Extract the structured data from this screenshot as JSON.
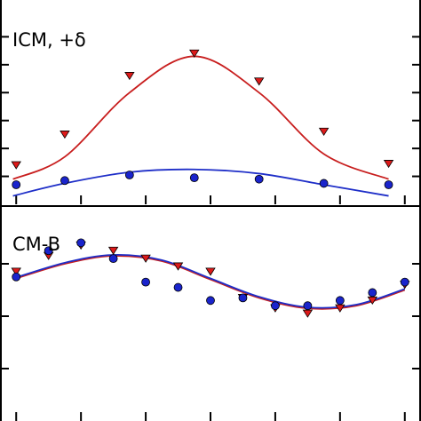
{
  "colors": {
    "red": "#c81e1e",
    "blue": "#1e2ec8",
    "red_marker": "#dd1a1a",
    "blue_marker": "#1a24cc"
  },
  "chart_data": [
    {
      "type": "scatter",
      "panel_label": "ICM, +δ",
      "xlim": [
        0,
        13
      ],
      "ylim": [
        0,
        7
      ],
      "grid": false,
      "series": [
        {
          "color": "red",
          "marker": "down-triangle",
          "points": [
            [
              0.5,
              1.4
            ],
            [
              2,
              2.5
            ],
            [
              4,
              4.6
            ],
            [
              6,
              5.4
            ],
            [
              8,
              4.4
            ],
            [
              10,
              2.6
            ],
            [
              12,
              1.45
            ]
          ],
          "fit_curve": [
            [
              0.4,
              0.9
            ],
            [
              2,
              1.7
            ],
            [
              4,
              4.0
            ],
            [
              6,
              5.3
            ],
            [
              8,
              4.0
            ],
            [
              10,
              1.8
            ],
            [
              12,
              0.9
            ]
          ]
        },
        {
          "color": "blue",
          "marker": "circle",
          "points": [
            [
              0.5,
              0.7
            ],
            [
              2,
              0.85
            ],
            [
              4,
              1.05
            ],
            [
              6,
              0.95
            ],
            [
              8,
              0.9
            ],
            [
              10,
              0.75
            ],
            [
              12,
              0.7
            ]
          ],
          "fit_curve": [
            [
              0.4,
              0.3
            ],
            [
              2,
              0.75
            ],
            [
              4,
              1.15
            ],
            [
              6,
              1.25
            ],
            [
              8,
              1.1
            ],
            [
              10,
              0.7
            ],
            [
              12,
              0.3
            ]
          ]
        }
      ]
    },
    {
      "type": "scatter",
      "panel_label": "CM-B",
      "xlim": [
        0,
        13
      ],
      "ylim": [
        0,
        4
      ],
      "grid": false,
      "series": [
        {
          "color": "red",
          "marker": "down-triangle",
          "points": [
            [
              0.5,
              2.85
            ],
            [
              1.5,
              3.15
            ],
            [
              2.5,
              3.35
            ],
            [
              3.5,
              3.25
            ],
            [
              4.5,
              3.1
            ],
            [
              5.5,
              2.95
            ],
            [
              6.5,
              2.85
            ],
            [
              7.5,
              2.35
            ],
            [
              8.5,
              2.15
            ],
            [
              9.5,
              2.05
            ],
            [
              10.5,
              2.15
            ],
            [
              11.5,
              2.3
            ],
            [
              12.5,
              2.6
            ]
          ],
          "fit_curve": [
            [
              0.4,
              2.7
            ],
            [
              2,
              3.0
            ],
            [
              3.5,
              3.15
            ],
            [
              5,
              3.05
            ],
            [
              6.5,
              2.7
            ],
            [
              8,
              2.35
            ],
            [
              9.5,
              2.15
            ],
            [
              11,
              2.2
            ],
            [
              12.5,
              2.5
            ]
          ]
        },
        {
          "color": "blue",
          "marker": "circle",
          "points": [
            [
              0.5,
              2.75
            ],
            [
              1.5,
              3.25
            ],
            [
              2.5,
              3.4
            ],
            [
              3.5,
              3.1
            ],
            [
              4.5,
              2.65
            ],
            [
              5.5,
              2.55
            ],
            [
              6.5,
              2.3
            ],
            [
              7.5,
              2.35
            ],
            [
              8.5,
              2.2
            ],
            [
              9.5,
              2.2
            ],
            [
              10.5,
              2.3
            ],
            [
              11.5,
              2.45
            ],
            [
              12.5,
              2.65
            ]
          ],
          "fit_curve": [
            [
              0.4,
              2.72
            ],
            [
              2,
              3.02
            ],
            [
              3.5,
              3.17
            ],
            [
              5,
              3.07
            ],
            [
              6.5,
              2.72
            ],
            [
              8,
              2.37
            ],
            [
              9.5,
              2.17
            ],
            [
              11,
              2.22
            ],
            [
              12.5,
              2.52
            ]
          ]
        }
      ]
    }
  ]
}
